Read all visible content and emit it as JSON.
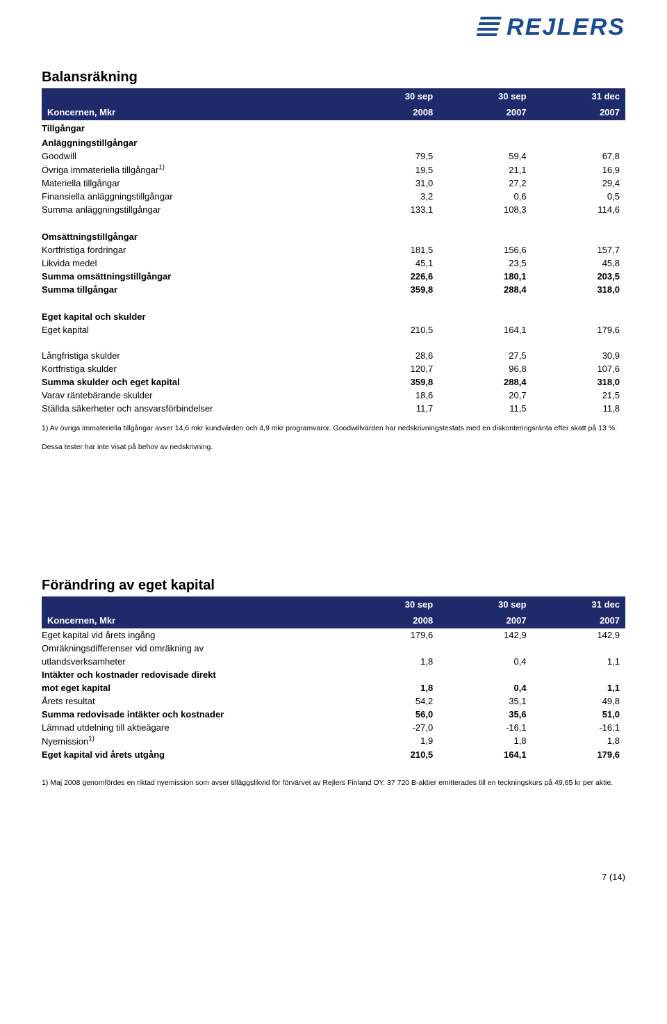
{
  "brand": {
    "name": "REJLERS",
    "color": "#1a4b8c"
  },
  "section1": {
    "title": "Balansräkning",
    "header_bg": "#1f2a6b",
    "col_label": "Koncernen, Mkr",
    "cols": [
      {
        "top": "30 sep",
        "bot": "2008"
      },
      {
        "top": "30 sep",
        "bot": "2007"
      },
      {
        "top": "31 dec",
        "bot": "2007"
      }
    ],
    "groups": [
      {
        "type": "head",
        "label": "Tillgångar"
      },
      {
        "type": "head",
        "label": "Anläggningstillgångar"
      },
      {
        "type": "row",
        "label": "Goodwill",
        "v": [
          "79,5",
          "59,4",
          "67,8"
        ]
      },
      {
        "type": "row",
        "label": "Övriga immateriella tillgångar",
        "sup": "1)",
        "v": [
          "19,5",
          "21,1",
          "16,9"
        ]
      },
      {
        "type": "row",
        "label": "Materiella tillgångar",
        "v": [
          "31,0",
          "27,2",
          "29,4"
        ]
      },
      {
        "type": "row",
        "label": "Finansiella anläggningstillgångar",
        "v": [
          "3,2",
          "0,6",
          "0,5"
        ]
      },
      {
        "type": "row",
        "label": "Summa anläggningstillgångar",
        "v": [
          "133,1",
          "108,3",
          "114,6"
        ]
      },
      {
        "type": "spacer"
      },
      {
        "type": "head",
        "label": "Omsättningstillgångar"
      },
      {
        "type": "row",
        "label": "Kortfristiga fordringar",
        "v": [
          "181,5",
          "156,6",
          "157,7"
        ]
      },
      {
        "type": "row",
        "label": "Likvida medel",
        "v": [
          "45,1",
          "23,5",
          "45,8"
        ]
      },
      {
        "type": "bold",
        "label": "Summa omsättningstillgångar",
        "v": [
          "226,6",
          "180,1",
          "203,5"
        ]
      },
      {
        "type": "bold",
        "label": "Summa tillgångar",
        "v": [
          "359,8",
          "288,4",
          "318,0"
        ]
      },
      {
        "type": "spacer"
      },
      {
        "type": "head",
        "label": "Eget kapital och skulder"
      },
      {
        "type": "row",
        "label": "Eget kapital",
        "v": [
          "210,5",
          "164,1",
          "179,6"
        ]
      },
      {
        "type": "spacer"
      },
      {
        "type": "row",
        "label": "Långfristiga skulder",
        "v": [
          "28,6",
          "27,5",
          "30,9"
        ]
      },
      {
        "type": "row",
        "label": "Kortfristiga skulder",
        "v": [
          "120,7",
          "96,8",
          "107,6"
        ]
      },
      {
        "type": "bold",
        "label": "Summa skulder och eget kapital",
        "v": [
          "359,8",
          "288,4",
          "318,0"
        ]
      },
      {
        "type": "row",
        "label": "Varav räntebärande skulder",
        "v": [
          "18,6",
          "20,7",
          "21,5"
        ]
      },
      {
        "type": "row",
        "label": "Ställda säkerheter och ansvarsförbindelser",
        "v": [
          "11,7",
          "11,5",
          "11,8"
        ]
      }
    ],
    "footnote1": "1) Av övriga immateriella tillgångar avser 14,6 mkr kundvärden och 4,9 mkr programvaror. Goodwillvärden har nedskrivningstestats med en diskonteringsränta efter skatt på 13 %.",
    "footnote2": "Dessa tester har inte visat på behov av nedskrivning."
  },
  "section2": {
    "title": "Förändring av eget kapital",
    "header_bg": "#1f2a6b",
    "col_label": "Koncernen, Mkr",
    "cols": [
      {
        "top": "30 sep",
        "bot": "2008"
      },
      {
        "top": "30 sep",
        "bot": "2007"
      },
      {
        "top": "31 dec",
        "bot": "2007"
      }
    ],
    "rows": [
      {
        "type": "row",
        "label": "Eget kapital vid årets ingång",
        "v": [
          "179,6",
          "142,9",
          "142,9"
        ]
      },
      {
        "type": "row2",
        "label1": "Omräkningsdifferenser vid omräkning av",
        "label2": "utlandsverksamheter",
        "v": [
          "1,8",
          "0,4",
          "1,1"
        ]
      },
      {
        "type": "bold2",
        "label1": "Intäkter och kostnader redovisade direkt",
        "label2": "mot eget kapital",
        "v": [
          "1,8",
          "0,4",
          "1,1"
        ]
      },
      {
        "type": "row",
        "label": "Årets resultat",
        "v": [
          "54,2",
          "35,1",
          "49,8"
        ]
      },
      {
        "type": "bold",
        "label": "Summa redovisade intäkter och kostnader",
        "v": [
          "56,0",
          "35,6",
          "51,0"
        ]
      },
      {
        "type": "row",
        "label": "Lämnad utdelning till aktieägare",
        "v": [
          "-27,0",
          "-16,1",
          "-16,1"
        ]
      },
      {
        "type": "row",
        "label": "Nyemission",
        "sup": "1)",
        "v": [
          "1,9",
          "1,8",
          "1,8"
        ]
      },
      {
        "type": "bold",
        "label": "Eget kapital vid årets utgång",
        "v": [
          "210,5",
          "164,1",
          "179,6"
        ]
      }
    ],
    "footnote": "1)  Maj 2008 genomfördes en riktad nyemission som avser tilläggslikvid för förvärvet av Rejlers Finland OY. 37 720 B-aktier emitterades till en teckningskurs på 49,65 kr per aktie."
  },
  "page": {
    "num": "7 (14)"
  }
}
